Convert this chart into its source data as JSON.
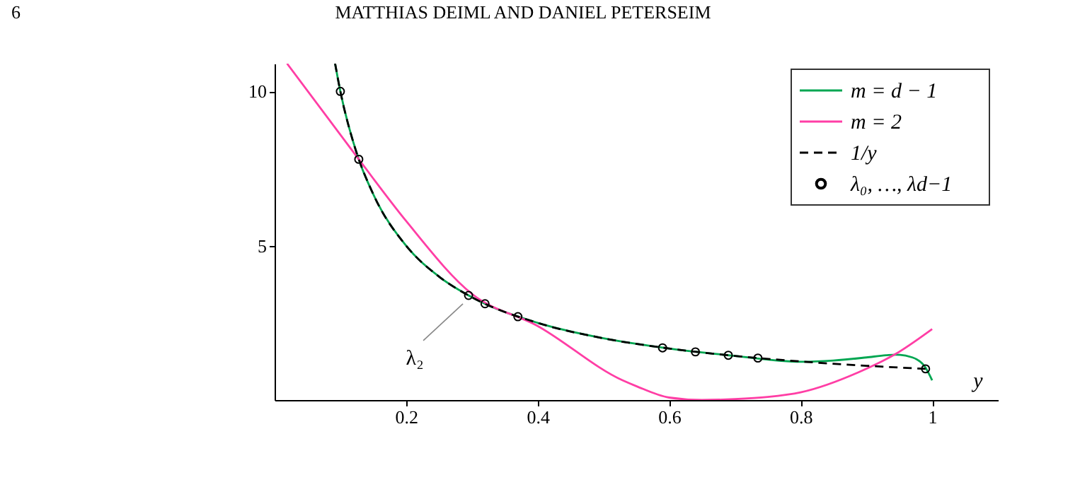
{
  "chart_data": {
    "type": "line",
    "xlabel": "y",
    "annotations": [
      "6",
      "MATTHIAS DEIML AND DANIEL PETERSEIM",
      {
        "text": "λ₂",
        "x": 0.295,
        "y": 3.39
      }
    ],
    "xlim": [
      0,
      1.1
    ],
    "ylim": [
      0,
      10.9
    ],
    "xticks": [
      0.2,
      0.4,
      0.6,
      0.8,
      1
    ],
    "yticks": [
      5,
      10
    ],
    "grid": false,
    "legend": "top right",
    "series": [
      {
        "name": "m = d − 1",
        "color": "#00a651",
        "line_style": "solid",
        "x": [
          0.092,
          0.1,
          0.128,
          0.15,
          0.2,
          0.25,
          0.3,
          0.4,
          0.5,
          0.6,
          0.7,
          0.8,
          0.85,
          0.9,
          0.93,
          0.945,
          0.97,
          0.99,
          1.0
        ],
        "values": [
          10.9,
          10,
          7.8,
          6.67,
          5.0,
          4.0,
          3.33,
          2.5,
          2.0,
          1.67,
          1.43,
          1.24,
          1.28,
          1.38,
          1.45,
          1.47,
          1.38,
          1.05,
          0.64
        ]
      },
      {
        "name": "m = 2",
        "color": "#ff3ea5",
        "line_style": "solid",
        "x": [
          0.019,
          0.128,
          0.2,
          0.3,
          0.4,
          0.529,
          0.55,
          0.6,
          0.65,
          0.7,
          0.75,
          0.8,
          0.888,
          0.945,
          1.0
        ],
        "values": [
          10.9,
          7.8,
          5.8,
          3.44,
          2.4,
          0.64,
          0.45,
          0.08,
          0,
          0.03,
          0.1,
          0.25,
          0.9,
          1.5,
          2.3
        ]
      },
      {
        "name": "1/y",
        "color": "#000000",
        "line_style": "dashed",
        "x": [
          0.092,
          0.1,
          0.12,
          0.15,
          0.2,
          0.25,
          0.3,
          0.4,
          0.5,
          0.6,
          0.7,
          0.8,
          0.9,
          0.99
        ],
        "values": [
          10.9,
          10,
          8.33,
          6.67,
          5.0,
          4.0,
          3.33,
          2.5,
          2.0,
          1.67,
          1.43,
          1.25,
          1.11,
          1.01
        ]
      },
      {
        "name": "λ₀, …, λd−1",
        "type": "scatter",
        "color": "#000000",
        "marker": "circle",
        "x": [
          0.1,
          0.128,
          0.295,
          0.32,
          0.37,
          0.59,
          0.64,
          0.69,
          0.735,
          0.99
        ],
        "values": [
          10,
          7.8,
          3.39,
          3.12,
          2.7,
          1.69,
          1.56,
          1.45,
          1.36,
          1.01
        ]
      }
    ]
  }
}
